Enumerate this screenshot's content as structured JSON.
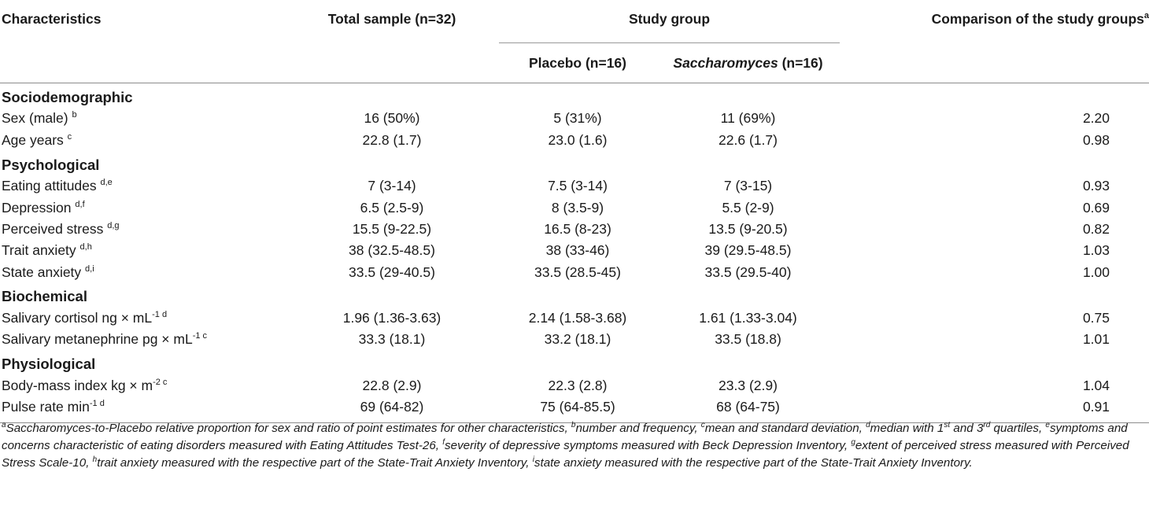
{
  "header": {
    "characteristics": "Characteristics",
    "total": "Total sample (n=32)",
    "study_group": "Study group",
    "placebo": "Placebo (n=16)",
    "sacch_italic": "Saccharomyces",
    "sacch_rest": " (n=16)",
    "comparison": "Comparison of the study groups",
    "comparison_sup": "a"
  },
  "sections": {
    "sociodemographic": "Sociodemographic",
    "psychological": "Psychological",
    "biochemical": "Biochemical",
    "physiological": "Physiological"
  },
  "rows": {
    "sex": {
      "label": "Sex (male) ",
      "sup": "b",
      "total": "16 (50%)",
      "placebo": "5 (31%)",
      "sacch": "11 (69%)",
      "comp": "2.20"
    },
    "age": {
      "label": "Age years ",
      "sup": "c",
      "total": "22.8 (1.7)",
      "placebo": "23.0 (1.6)",
      "sacch": "22.6 (1.7)",
      "comp": "0.98"
    },
    "eating": {
      "label": "Eating attitudes ",
      "sup": "d,e",
      "total": "7 (3-14)",
      "placebo": "7.5 (3-14)",
      "sacch": "7 (3-15)",
      "comp": "0.93"
    },
    "depression": {
      "label": "Depression ",
      "sup": "d,f",
      "total": "6.5 (2.5-9)",
      "placebo": "8 (3.5-9)",
      "sacch": "5.5 (2-9)",
      "comp": "0.69"
    },
    "stress": {
      "label": "Perceived stress ",
      "sup": "d,g",
      "total": "15.5 (9-22.5)",
      "placebo": "16.5 (8-23)",
      "sacch": "13.5 (9-20.5)",
      "comp": "0.82"
    },
    "trait": {
      "label": "Trait anxiety ",
      "sup": "d,h",
      "total": "38 (32.5-48.5)",
      "placebo": "38 (33-46)",
      "sacch": "39 (29.5-48.5)",
      "comp": "1.03"
    },
    "state": {
      "label": "State anxiety ",
      "sup": "d,i",
      "total": "33.5 (29-40.5)",
      "placebo": "33.5 (28.5-45)",
      "sacch": "33.5 (29.5-40)",
      "comp": "1.00"
    },
    "cortisol": {
      "label": "Salivary cortisol ng × mL",
      "unit_sup": "-1",
      "sup": " d",
      "total": "1.96 (1.36-3.63)",
      "placebo": "2.14 (1.58-3.68)",
      "sacch": "1.61 (1.33-3.04)",
      "comp": "0.75"
    },
    "metaneph": {
      "label": "Salivary metanephrine pg × mL",
      "unit_sup": "-1",
      "sup": " c",
      "total": "33.3 (18.1)",
      "placebo": "33.2 (18.1)",
      "sacch": "33.5 (18.8)",
      "comp": "1.01"
    },
    "bmi": {
      "label": "Body-mass index kg × m",
      "unit_sup": "-2",
      "sup": " c",
      "total": "22.8 (2.9)",
      "placebo": "22.3 (2.8)",
      "sacch": "23.3 (2.9)",
      "comp": "1.04"
    },
    "pulse": {
      "label": "Pulse rate min",
      "unit_sup": "-1",
      "sup": " d",
      "total": "69 (64-82)",
      "placebo": "75 (64-85.5)",
      "sacch": "68 (64-75)",
      "comp": "0.91"
    }
  },
  "footnote": {
    "a_sup": "a",
    "a_text": "Saccharomyces-to-Placebo relative proportion for sex and ratio of point estimates for other characteristics, ",
    "b_sup": "b",
    "b_text": "number and frequency, ",
    "c_sup": "c",
    "c_text": "mean and standard deviation, ",
    "d_sup": "d",
    "d_text": "median with 1",
    "d_st": "st",
    "d_and": " and ",
    "d_3": "3",
    "d_rd": "rd",
    "d_tail": " quartiles, ",
    "e_sup": "e",
    "e_text": "symptoms and concerns characteristic of eating disorders measured with Eating Attitudes Test-26, ",
    "f_sup": "f",
    "f_text": "severity of depressive symptoms measured with Beck Depression Inventory, ",
    "g_sup": "g",
    "g_text": "extent of perceived stress measured with Perceived Stress Scale-10, ",
    "h_sup": "h",
    "h_text": "trait anxiety measured with the respective part of the State-Trait Anxiety Inventory, ",
    "i_sup": "i",
    "i_text": "state anxiety measured with the respective part of the State-Trait Anxiety Inventory."
  }
}
